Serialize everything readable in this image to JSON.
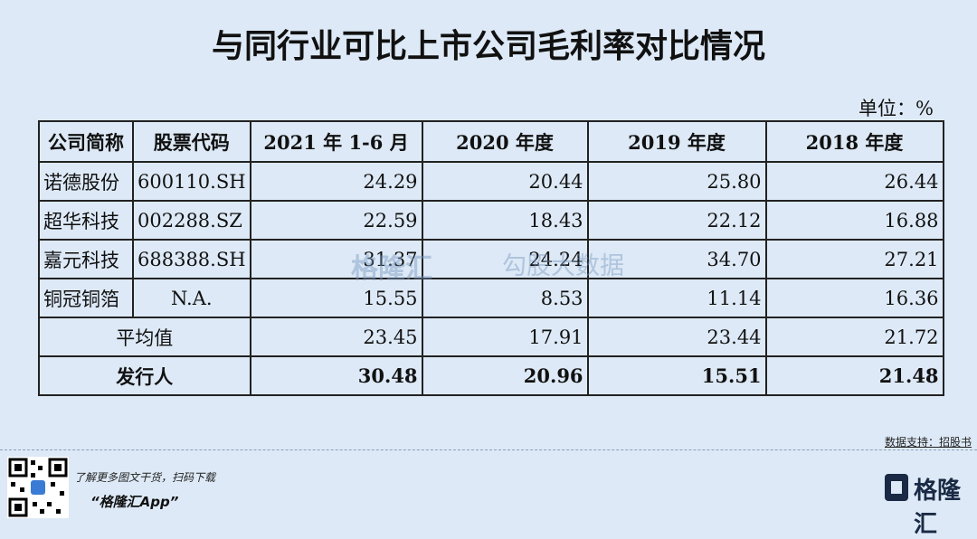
{
  "header": {
    "title": "与同行业可比上市公司毛利率对比情况",
    "unit": "单位：%"
  },
  "table": {
    "columns": [
      "公司简称",
      "股票代码",
      "2021 年 1-6 月",
      "2020 年度",
      "2019 年度",
      "2018 年度"
    ],
    "rows": [
      [
        "诺德股份",
        "600110.SH",
        "24.29",
        "20.44",
        "25.80",
        "26.44"
      ],
      [
        "超华科技",
        "002288.SZ",
        "22.59",
        "18.43",
        "22.12",
        "16.88"
      ],
      [
        "嘉元科技",
        "688388.SH",
        "31.37",
        "24.24",
        "34.70",
        "27.21"
      ],
      [
        "铜冠铜箔",
        "N.A.",
        "15.55",
        "8.53",
        "11.14",
        "16.36"
      ]
    ],
    "summary_rows": [
      [
        "平均值",
        "23.45",
        "17.91",
        "23.44",
        "21.72"
      ],
      [
        "发行人",
        "30.48",
        "20.96",
        "15.51",
        "21.48"
      ]
    ]
  },
  "watermark": {
    "brand": "格隆汇",
    "partner": "勾股大数据"
  },
  "source": "数据支持：招股书",
  "footer": {
    "prompt": "了解更多图文干货，扫码下载",
    "app": "“格隆汇App”",
    "logo": "格隆汇"
  }
}
